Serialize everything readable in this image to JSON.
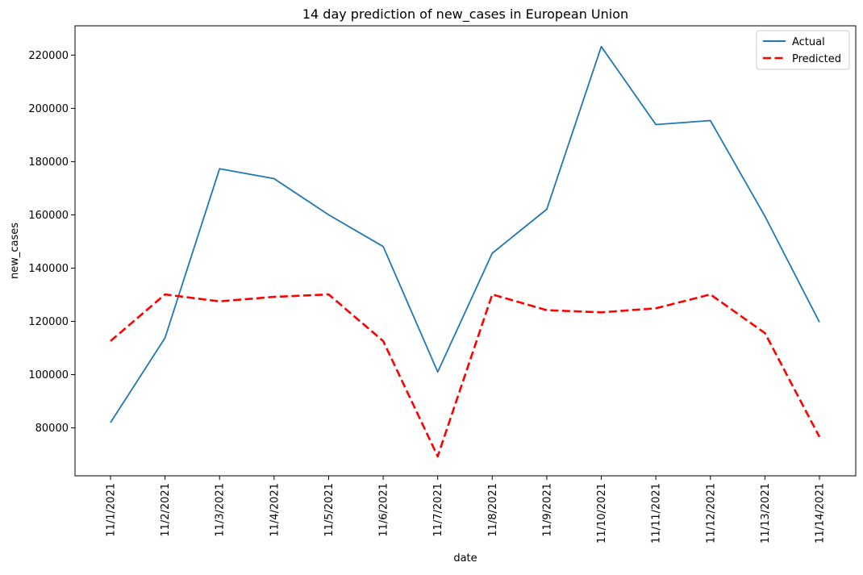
{
  "chart_data": {
    "type": "line",
    "title": "14 day prediction of new_cases in European Union",
    "xlabel": "date",
    "ylabel": "new_cases",
    "categories": [
      "11/1/2021",
      "11/2/2021",
      "11/3/2021",
      "11/4/2021",
      "11/5/2021",
      "11/6/2021",
      "11/7/2021",
      "11/8/2021",
      "11/9/2021",
      "11/10/2021",
      "11/11/2021",
      "11/12/2021",
      "11/13/2021",
      "11/14/2021"
    ],
    "y_ticks": [
      80000,
      100000,
      120000,
      140000,
      160000,
      180000,
      200000,
      220000
    ],
    "ylim": [
      62000,
      231000
    ],
    "grid": false,
    "legend_position": "top-right",
    "series": [
      {
        "name": "Actual",
        "color": "#1f77b4",
        "style": "solid",
        "values": [
          82000,
          113800,
          177300,
          173600,
          160000,
          148100,
          101000,
          145600,
          162100,
          223200,
          193900,
          195400,
          159500,
          119700
        ]
      },
      {
        "name": "Predicted",
        "color": "#ff0000",
        "style": "dashed",
        "values": [
          112600,
          130100,
          127500,
          129200,
          130100,
          112600,
          69300,
          130100,
          124200,
          123400,
          124900,
          130100,
          115600,
          76600
        ]
      }
    ]
  }
}
